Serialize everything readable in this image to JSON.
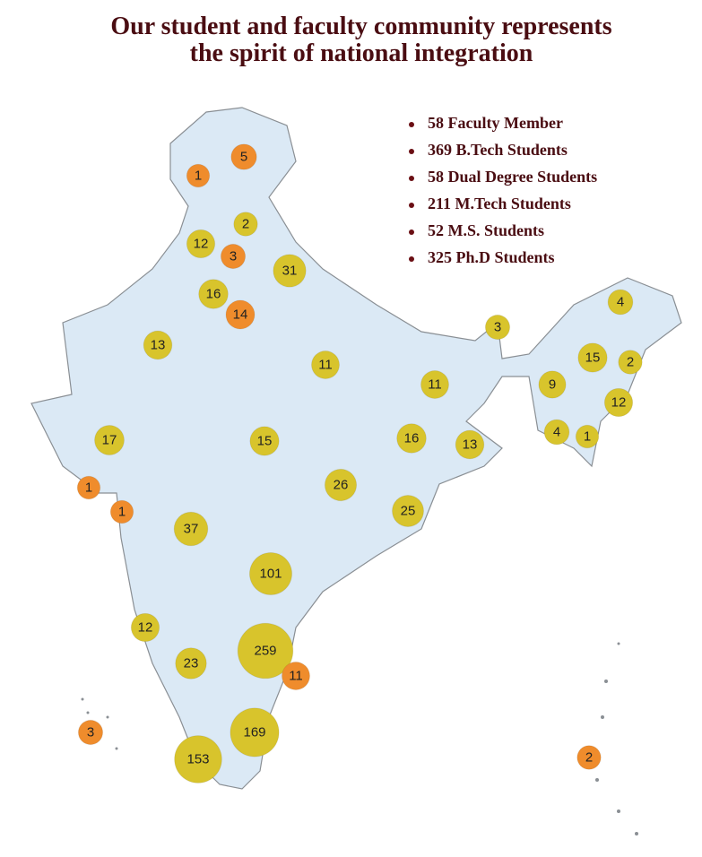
{
  "header": {
    "title_lines": [
      "Our student and faculty community represents",
      "the spirit of national integration"
    ]
  },
  "legend": {
    "color": "#6b0f14",
    "items": [
      "58 Faculty Member",
      "369 B.Tech Students",
      "58 Dual Degree Students",
      "211 M.Tech Students",
      "52 M.S. Students",
      "325 Ph.D Students"
    ]
  },
  "map": {
    "fill": "#dbe9f5",
    "stroke": "#8a8f94",
    "bubbles": [
      {
        "value": 5,
        "color": "#ef8c2c"
      },
      {
        "value": 1,
        "color": "#ef8c2c"
      },
      {
        "value": 2,
        "color": "#d8c42c"
      },
      {
        "value": 12,
        "color": "#d8c42c"
      },
      {
        "value": 3,
        "color": "#ef8c2c"
      },
      {
        "value": 31,
        "color": "#d8c42c"
      },
      {
        "value": 16,
        "color": "#d8c42c"
      },
      {
        "value": 14,
        "color": "#ef8c2c"
      },
      {
        "value": 13,
        "color": "#d8c42c"
      },
      {
        "value": 11,
        "color": "#d8c42c"
      },
      {
        "value": 11,
        "color": "#d8c42c"
      },
      {
        "value": 3,
        "color": "#d8c42c"
      },
      {
        "value": 4,
        "color": "#d8c42c"
      },
      {
        "value": 15,
        "color": "#d8c42c"
      },
      {
        "value": 2,
        "color": "#d8c42c"
      },
      {
        "value": 9,
        "color": "#d8c42c"
      },
      {
        "value": 12,
        "color": "#d8c42c"
      },
      {
        "value": 4,
        "color": "#d8c42c"
      },
      {
        "value": 1,
        "color": "#d8c42c"
      },
      {
        "value": 17,
        "color": "#d8c42c"
      },
      {
        "value": 15,
        "color": "#d8c42c"
      },
      {
        "value": 16,
        "color": "#d8c42c"
      },
      {
        "value": 13,
        "color": "#d8c42c"
      },
      {
        "value": 1,
        "color": "#ef8c2c"
      },
      {
        "value": 26,
        "color": "#d8c42c"
      },
      {
        "value": 25,
        "color": "#d8c42c"
      },
      {
        "value": 1,
        "color": "#ef8c2c"
      },
      {
        "value": 37,
        "color": "#d8c42c"
      },
      {
        "value": 101,
        "color": "#d8c42c"
      },
      {
        "value": 12,
        "color": "#d8c42c"
      },
      {
        "value": 23,
        "color": "#d8c42c"
      },
      {
        "value": 259,
        "color": "#d8c42c"
      },
      {
        "value": 11,
        "color": "#ef8c2c"
      },
      {
        "value": 3,
        "color": "#ef8c2c"
      },
      {
        "value": 169,
        "color": "#d8c42c"
      },
      {
        "value": 153,
        "color": "#d8c42c"
      },
      {
        "value": 2,
        "color": "#ef8c2c"
      }
    ]
  }
}
